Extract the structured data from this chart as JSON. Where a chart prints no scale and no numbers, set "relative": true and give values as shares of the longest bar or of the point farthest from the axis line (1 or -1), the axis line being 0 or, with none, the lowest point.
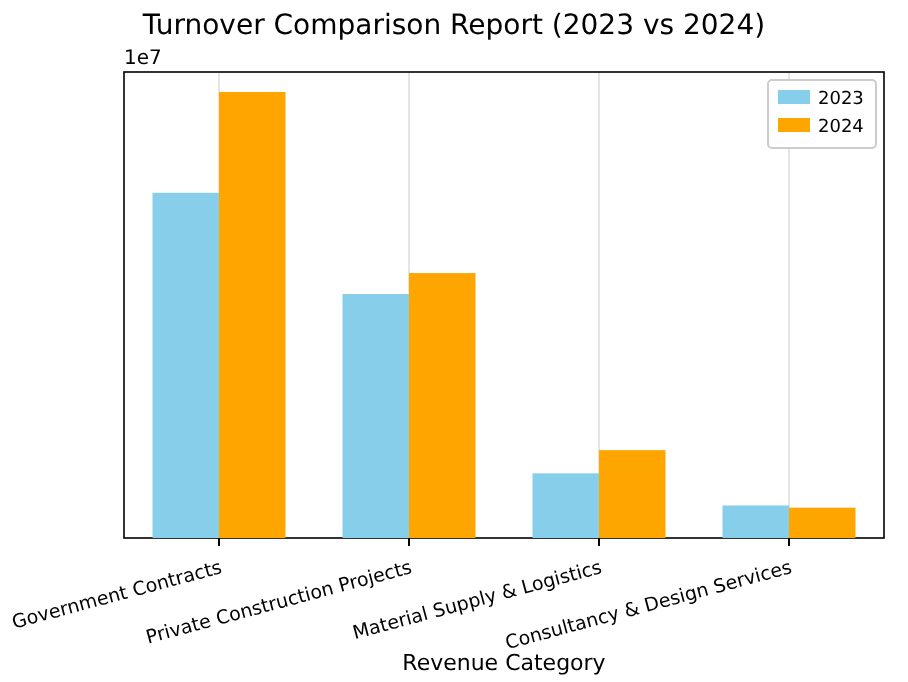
{
  "chart_data": {
    "type": "bar",
    "title": "Turnover Comparison Report (2023 vs 2024)",
    "xlabel": "Revenue Category",
    "relative": true,
    "categories": [
      "Government Contracts",
      "Private Construction Projects",
      "Material Supply & Logistics",
      "Consultancy & Design Services"
    ],
    "series": [
      {
        "name": "2023",
        "color": "#87ceeb",
        "values": [
          0.774,
          0.547,
          0.145,
          0.073
        ]
      },
      {
        "name": "2024",
        "color": "#ffa500",
        "values": [
          1,
          0.594,
          0.197,
          0.068
        ]
      }
    ],
    "annotations": [
      "1e7"
    ],
    "grid": "x",
    "legend": "top right"
  }
}
